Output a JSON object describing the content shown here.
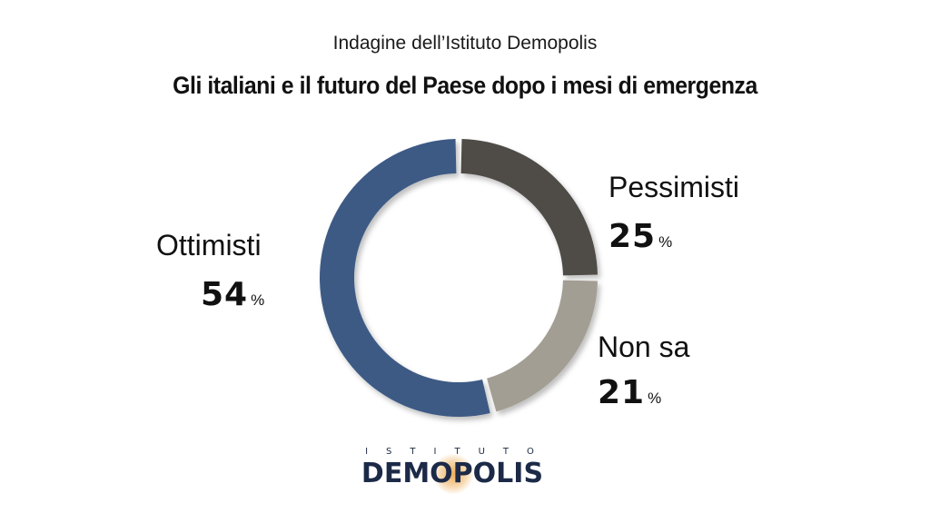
{
  "header": {
    "subtitle": "Indagine dell’Istituto Demopolis",
    "title": "Gli italiani e il futuro del Paese dopo i mesi di emergenza"
  },
  "chart_data": {
    "type": "pie",
    "variant": "donut",
    "title": "Gli italiani e il futuro del Paese dopo i mesi di emergenza",
    "subtitle": "Indagine dell’Istituto Demopolis",
    "unit": "%",
    "slices": [
      {
        "label": "Pessimisti",
        "value": 25,
        "color": "#504b47"
      },
      {
        "label": "Non sa",
        "value": 21,
        "color": "#a39e93"
      },
      {
        "label": "Ottimisti",
        "value": 54,
        "color": "#3d5a85"
      }
    ]
  },
  "labels": {
    "ottimisti": {
      "name": "Ottimisti",
      "value": "54",
      "unit": "%"
    },
    "pessimisti": {
      "name": "Pessimisti",
      "value": "25",
      "unit": "%"
    },
    "non_sa": {
      "name": "Non sa",
      "value": "21",
      "unit": "%"
    }
  },
  "logo": {
    "top_text": "ISTITUTO",
    "main_text": "DEMOPOLIS",
    "accent_color": "#e9a04a",
    "text_color": "#1c2a48"
  }
}
